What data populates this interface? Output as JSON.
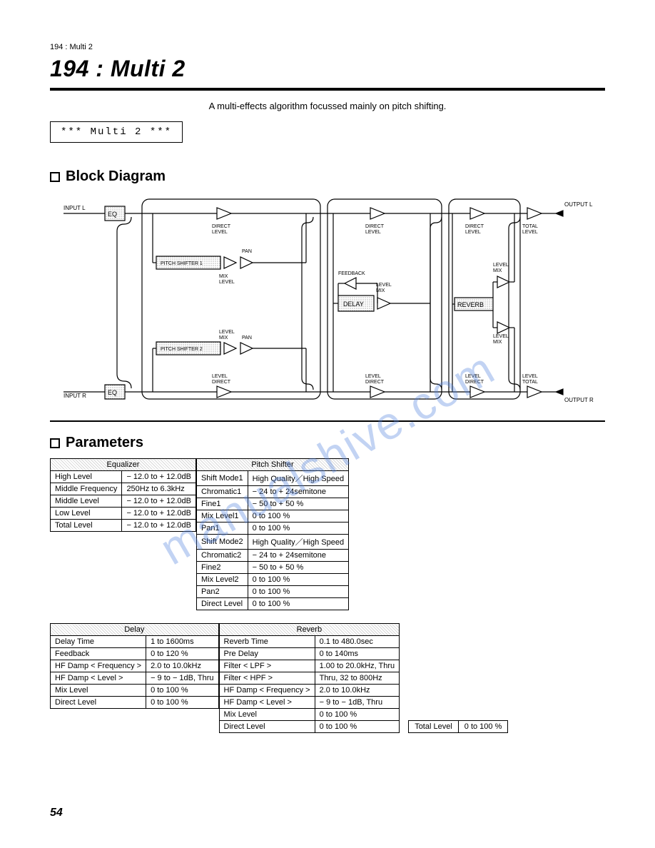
{
  "header": {
    "slug": "194 : Multi 2",
    "title": "194 : Multi 2"
  },
  "description": "A multi-effects algorithm focussed mainly on pitch shifting.",
  "lcd": "*** Multi  2 ***",
  "sections": {
    "diagram": "Block  Diagram",
    "parameters": "Parameters"
  },
  "diagram": {
    "io": {
      "input_l": "INPUT L",
      "input_r": "INPUT R",
      "output_l": "OUTPUT L",
      "output_r": "OUTPUT R"
    },
    "blocks": {
      "eq": "EQ",
      "pitch1": "PITCH SHIFTER 1",
      "pitch2": "PITCH SHIFTER 2",
      "delay": "DELAY",
      "reverb": "REVERB"
    },
    "labels": {
      "direct_level": "DIRECT\nLEVEL",
      "mix_level": "MIX\nLEVEL",
      "pan": "PAN",
      "feedback": "FEEDBACK",
      "total_level": "TOTAL\nLEVEL"
    },
    "style": {
      "box_fill": "#f2f2f2",
      "stroke": "#000000",
      "stroke_width": 1.2,
      "font_size_small": 7,
      "font_size_io": 8
    }
  },
  "tables": {
    "equalizer": {
      "title": "Equalizer",
      "rows": [
        [
          "High Level",
          "− 12.0 to + 12.0dB"
        ],
        [
          "Middle Frequency",
          "250Hz to 6.3kHz"
        ],
        [
          "Middle Level",
          "− 12.0 to + 12.0dB"
        ],
        [
          "Low Level",
          "− 12.0 to + 12.0dB"
        ],
        [
          "Total Level",
          "− 12.0 to + 12.0dB"
        ]
      ]
    },
    "pitch_shifter": {
      "title": "Pitch Shifter",
      "rows": [
        [
          "Shift Mode1",
          "High Quality／High Speed"
        ],
        [
          "Chromatic1",
          "− 24 to + 24semitone"
        ],
        [
          "Fine1",
          "− 50 to + 50 %"
        ],
        [
          "Mix Level1",
          "0 to 100 %"
        ],
        [
          "Pan1",
          "0 to 100 %"
        ],
        [
          "Shift Mode2",
          "High Quality／High Speed"
        ],
        [
          "Chromatic2",
          "− 24 to + 24semitone"
        ],
        [
          "Fine2",
          "− 50 to + 50 %"
        ],
        [
          "Mix Level2",
          "0 to 100 %"
        ],
        [
          "Pan2",
          "0 to 100 %"
        ],
        [
          "Direct Level",
          "0 to 100 %"
        ]
      ]
    },
    "delay": {
      "title": "Delay",
      "rows": [
        [
          "Delay Time",
          "1 to 1600ms"
        ],
        [
          "Feedback",
          "0 to 120 %"
        ],
        [
          "HF Damp < Frequency >",
          "2.0 to 10.0kHz"
        ],
        [
          "HF Damp < Level >",
          "− 9 to − 1dB, Thru"
        ],
        [
          "Mix Level",
          "0 to 100 %"
        ],
        [
          "Direct Level",
          "0 to 100 %"
        ]
      ]
    },
    "reverb": {
      "title": "Reverb",
      "rows": [
        [
          "Reverb Time",
          "0.1 to 480.0sec"
        ],
        [
          "Pre Delay",
          "0 to 140ms"
        ],
        [
          "Filter < LPF >",
          "1.00 to 20.0kHz, Thru"
        ],
        [
          "Filter < HPF >",
          "Thru, 32 to 800Hz"
        ],
        [
          "HF Damp < Frequency >",
          "2.0 to 10.0kHz"
        ],
        [
          "HF Damp < Level >",
          "− 9 to − 1dB, Thru"
        ],
        [
          "Mix Level",
          "0 to 100 %"
        ],
        [
          "Direct Level",
          "0 to 100 %"
        ]
      ]
    },
    "total_level": {
      "label": "Total Level",
      "range": "0 to 100 %"
    }
  },
  "page_number": "54",
  "watermark": "manualshive.com"
}
